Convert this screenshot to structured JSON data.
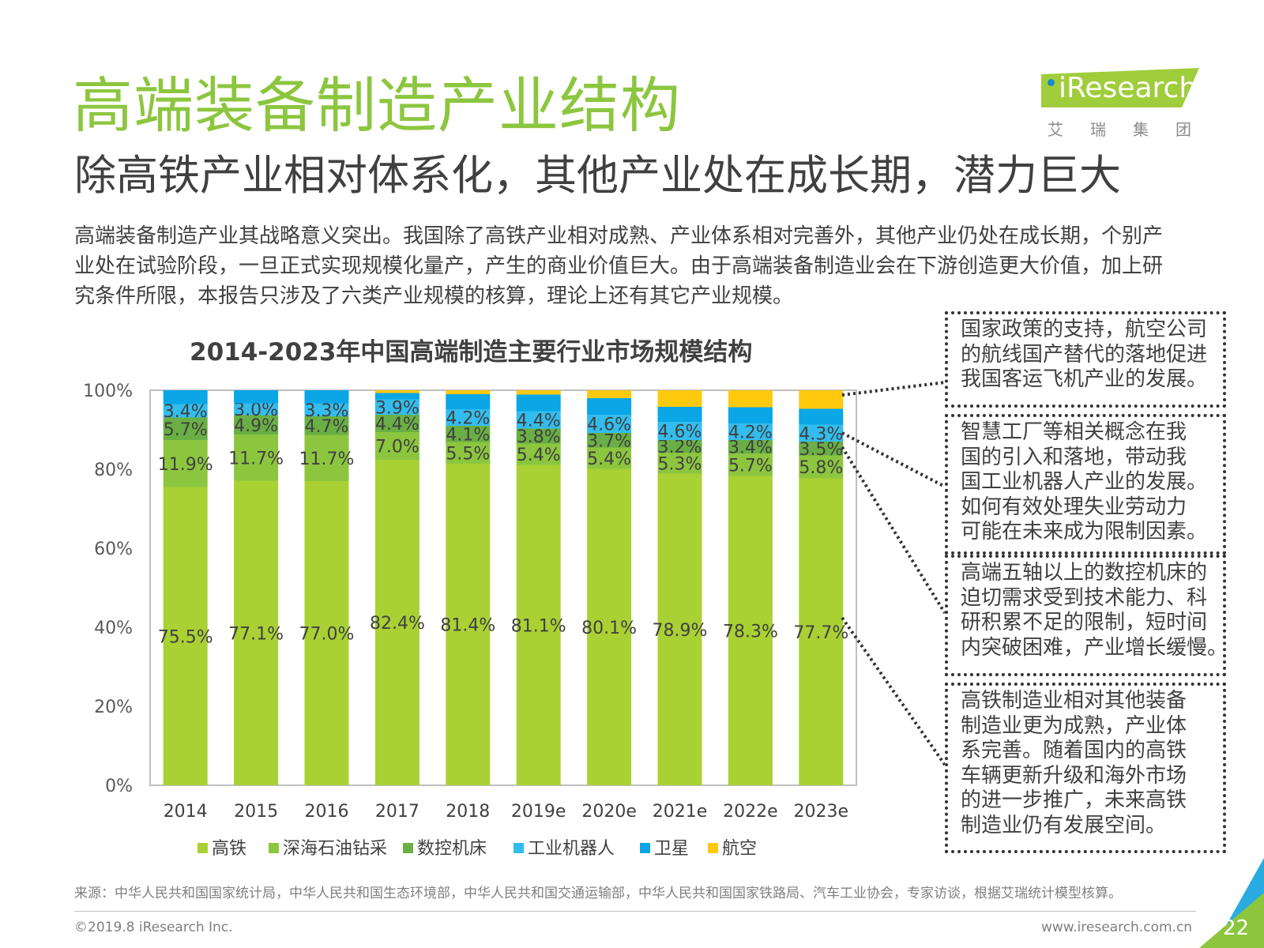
{
  "header": {
    "title": "高端装备制造产业结构",
    "subtitle": "除高铁产业相对体系化，其他产业处在成长期，潜力巨大"
  },
  "logo": {
    "text": "iResearch",
    "sub": "艾瑞集团"
  },
  "intro": [
    "高端装备制造产业其战略意义突出。我国除了高铁产业相对成熟、产业体系相对完善外，其他产业仍处在成长期，个别产",
    "业处在试验阶段，一旦正式实现规模化量产，产生的商业价值巨大。由于高端装备制造业会在下游创造更大价值，加上研",
    "究条件所限，本报告只涉及了六类产业规模的核算，理论上还有其它产业规模。"
  ],
  "chart_data": {
    "type": "bar",
    "stacked": true,
    "title": "2014-2023年中国高端制造主要行业市场规模结构",
    "categories": [
      "2014",
      "2015",
      "2016",
      "2017",
      "2018",
      "2019e",
      "2020e",
      "2021e",
      "2022e",
      "2023e"
    ],
    "y_ticks": [
      "0%",
      "20%",
      "40%",
      "60%",
      "80%",
      "100%"
    ],
    "ylim": [
      0,
      100
    ],
    "legend_position": "bottom",
    "series": [
      {
        "name": "高铁",
        "color": "#a9d134",
        "values": [
          75.5,
          77.1,
          77.0,
          82.4,
          81.4,
          81.1,
          80.1,
          78.9,
          78.3,
          77.7
        ],
        "labels": [
          "75.5%",
          "77.1%",
          "77.0%",
          "82.4%",
          "81.4%",
          "81.1%",
          "80.1%",
          "78.9%",
          "78.3%",
          "77.7%"
        ]
      },
      {
        "name": "深海石油钻采",
        "color": "#8cc63f",
        "values": [
          11.9,
          11.7,
          11.7,
          7.0,
          5.5,
          5.4,
          5.4,
          5.3,
          5.7,
          5.8
        ],
        "labels": [
          "11.9%",
          "11.7%",
          "11.7%",
          "7.0%",
          "5.5%",
          "5.4%",
          "5.4%",
          "5.3%",
          "5.7%",
          "5.8%"
        ]
      },
      {
        "name": "数控机床",
        "color": "#6aaf45",
        "values": [
          5.7,
          4.9,
          4.7,
          4.4,
          4.1,
          3.8,
          3.7,
          3.2,
          3.4,
          3.5
        ],
        "labels": [
          "5.7%",
          "4.9%",
          "4.7%",
          "4.4%",
          "4.1%",
          "3.8%",
          "3.7%",
          "3.2%",
          "3.4%",
          "3.5%"
        ]
      },
      {
        "name": "工业机器人",
        "color": "#33bdee",
        "values": [
          3.4,
          3.0,
          3.3,
          3.9,
          4.2,
          4.4,
          4.6,
          4.6,
          4.2,
          4.3
        ],
        "labels": [
          "3.4%",
          "3.0%",
          "3.3%",
          "3.9%",
          "4.2%",
          "4.4%",
          "4.6%",
          "4.6%",
          "4.2%",
          "4.3%"
        ]
      },
      {
        "name": "卫星",
        "color": "#0aa6e6",
        "values": [
          3.5,
          3.3,
          3.3,
          1.6,
          3.8,
          4.2,
          4.2,
          3.8,
          4.1,
          4.0
        ],
        "labels": []
      },
      {
        "name": "航空",
        "color": "#ffc90e",
        "values": [
          0,
          0,
          0,
          0.7,
          1.0,
          1.1,
          2.0,
          4.2,
          4.3,
          4.7
        ],
        "labels": []
      }
    ]
  },
  "notes": [
    [
      "国家政策的支持，航空公司",
      "的航线国产替代的落地促进",
      "我国客运飞机产业的发展。"
    ],
    [
      "智慧工厂等相关概念在我",
      "国的引入和落地，带动我",
      "国工业机器人产业的发展。",
      "如何有效处理失业劳动力",
      "可能在未来成为限制因素。"
    ],
    [
      "高端五轴以上的数控机床的",
      "迫切需求受到技术能力、科",
      "研积累不足的限制，短时间",
      "内突破困难，产业增长缓慢。"
    ],
    [
      "高铁制造业相对其他装备",
      "制造业更为成熟，产业体",
      "系完善。随着国内的高铁",
      "车辆更新升级和海外市场",
      "的进一步推广，未来高铁",
      "制造业仍有发展空间。"
    ]
  ],
  "footer": {
    "source": "来源：中华人民共和国国家统计局，中华人民共和国生态环境部，中华人民共和国交通运输部，中华人民共和国国家铁路局、汽车工业协会，专家访谈，根据艾瑞统计模型核算。",
    "copyright": "©2019.8 iResearch Inc.",
    "website": "www.iresearch.com.cn",
    "page": "22"
  },
  "colors": {
    "title": "#8cc63f",
    "logo_green": "#a0cd3c",
    "corner_green": "#8cc63f",
    "corner_blue": "#29abe2"
  }
}
